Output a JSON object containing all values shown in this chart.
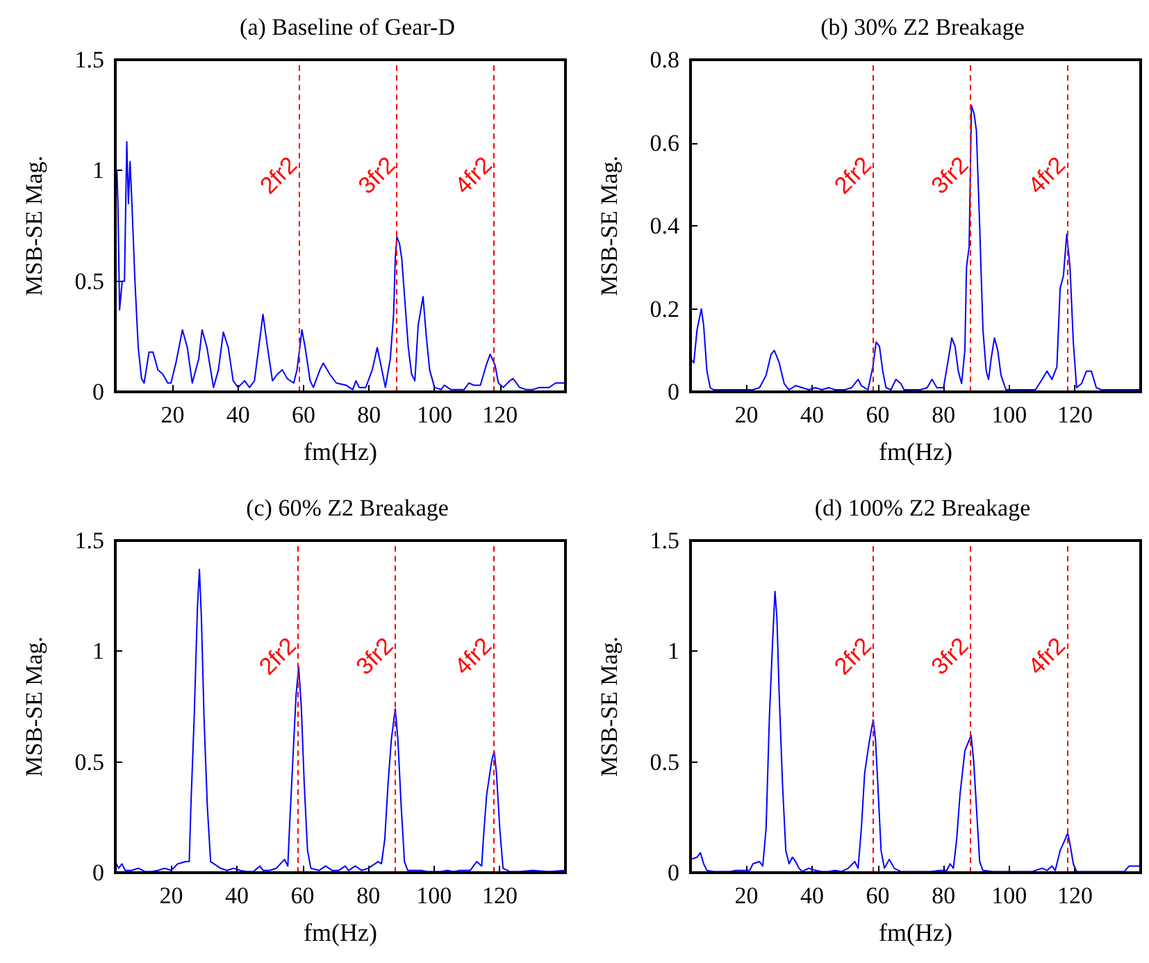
{
  "chart_data": [
    {
      "type": "line",
      "title": "(a) Baseline of Gear-D",
      "xlabel": "fm(Hz)",
      "ylabel": "MSB-SE Mag.",
      "xlim": [
        2.5,
        140
      ],
      "ylim": [
        0,
        1.5
      ],
      "xticks": [
        20,
        40,
        60,
        80,
        100,
        120
      ],
      "yticks": [
        0,
        0.5,
        1,
        1.5
      ],
      "x": [
        3,
        3.3,
        3.8,
        4.6,
        5.3,
        6,
        6.5,
        7,
        7.6,
        8.5,
        9.5,
        10.5,
        11.3,
        12.8,
        14,
        15.5,
        17,
        18.5,
        19.5,
        21,
        23,
        24.5,
        26,
        28,
        29,
        30.5,
        32.5,
        34,
        35.5,
        37,
        38.5,
        40,
        42,
        43.5,
        45,
        47,
        47.6,
        49,
        50.5,
        52,
        53.5,
        55,
        57,
        58,
        59.5,
        60.5,
        62,
        63,
        65,
        66,
        68,
        70,
        73,
        75,
        76,
        77,
        79,
        81,
        82.5,
        83.5,
        85,
        86.5,
        87.5,
        88,
        88.5,
        89.3,
        90,
        91,
        92,
        93,
        94,
        95,
        96.5,
        97.5,
        98.5,
        100,
        102,
        103,
        105,
        107,
        109,
        110.5,
        112,
        114,
        116,
        117,
        118.5,
        119.5,
        121,
        123,
        124,
        126,
        128,
        130,
        132,
        135,
        137,
        140
      ],
      "series": [
        {
          "color": "#0000ff",
          "values": [
            1.0,
            0.85,
            0.37,
            0.5,
            0.5,
            1.13,
            0.85,
            1.04,
            0.84,
            0.5,
            0.2,
            0.06,
            0.04,
            0.18,
            0.18,
            0.1,
            0.08,
            0.04,
            0.04,
            0.13,
            0.28,
            0.2,
            0.04,
            0.15,
            0.28,
            0.2,
            0.02,
            0.1,
            0.27,
            0.2,
            0.05,
            0.02,
            0.05,
            0.02,
            0.05,
            0.28,
            0.35,
            0.2,
            0.05,
            0.08,
            0.1,
            0.06,
            0.04,
            0.1,
            0.28,
            0.2,
            0.05,
            0.02,
            0.1,
            0.13,
            0.08,
            0.04,
            0.03,
            0.01,
            0.05,
            0.02,
            0.02,
            0.1,
            0.2,
            0.13,
            0.02,
            0.15,
            0.35,
            0.6,
            0.7,
            0.67,
            0.6,
            0.4,
            0.2,
            0.08,
            0.05,
            0.3,
            0.43,
            0.25,
            0.1,
            0.02,
            0.01,
            0.03,
            0.01,
            0.01,
            0.01,
            0.04,
            0.03,
            0.03,
            0.13,
            0.17,
            0.12,
            0.04,
            0.02,
            0.05,
            0.06,
            0.02,
            0.01,
            0.01,
            0.02,
            0.02,
            0.04,
            0.04
          ]
        }
      ],
      "ref_lines": [
        {
          "axis": "x",
          "value": 58.5,
          "label": "2fr2",
          "color": "#ff0000",
          "line_style": "dashed"
        },
        {
          "axis": "x",
          "value": 88.5,
          "label": "3fr2",
          "color": "#ff0000",
          "line_style": "dashed"
        },
        {
          "axis": "x",
          "value": 118,
          "label": "4fr2",
          "color": "#ff0000",
          "line_style": "dashed"
        }
      ]
    },
    {
      "type": "line",
      "title": "(b) 30% Z2 Breakage",
      "xlabel": "fm(Hz)",
      "ylabel": "MSB-SE Mag.",
      "xlim": [
        3,
        140
      ],
      "ylim": [
        0,
        0.8
      ],
      "xticks": [
        20,
        40,
        60,
        80,
        100,
        120
      ],
      "yticks": [
        0,
        0.2,
        0.4,
        0.6,
        0.8
      ],
      "x": [
        3,
        4,
        5,
        6.3,
        7,
        8,
        9,
        10,
        12,
        14,
        16,
        18,
        20,
        22,
        24,
        26,
        27.5,
        28.5,
        30,
        31.5,
        33,
        35,
        37,
        39,
        41,
        43,
        45,
        47,
        50,
        52,
        54,
        55,
        57,
        58.5,
        59.5,
        60.5,
        61.5,
        62.5,
        64,
        65.5,
        67,
        68,
        71,
        73,
        75,
        76.5,
        78,
        80,
        81.5,
        82.5,
        83.5,
        84.5,
        85.5,
        86.5,
        87,
        87.8,
        88.5,
        89.3,
        90,
        91,
        92,
        93,
        93.7,
        94.5,
        95.5,
        96.5,
        97.5,
        99,
        102,
        105,
        108,
        110,
        111.5,
        113,
        114.5,
        115.5,
        116.5,
        117.5,
        118.5,
        119.5,
        120.5,
        122,
        123.5,
        125,
        126.5,
        128,
        132,
        136,
        140
      ],
      "series": [
        {
          "color": "#0000ff",
          "values": [
            0.08,
            0.07,
            0.15,
            0.2,
            0.16,
            0.05,
            0.01,
            0.005,
            0.005,
            0.005,
            0.005,
            0.005,
            0.005,
            0.005,
            0.01,
            0.04,
            0.09,
            0.1,
            0.07,
            0.02,
            0.005,
            0.015,
            0.01,
            0.005,
            0.01,
            0.005,
            0.01,
            0.005,
            0.005,
            0.01,
            0.03,
            0.015,
            0.005,
            0.06,
            0.12,
            0.11,
            0.05,
            0.01,
            0.005,
            0.03,
            0.02,
            0.005,
            0.005,
            0.005,
            0.01,
            0.03,
            0.01,
            0.01,
            0.08,
            0.13,
            0.11,
            0.05,
            0.02,
            0.1,
            0.3,
            0.35,
            0.69,
            0.67,
            0.63,
            0.4,
            0.15,
            0.05,
            0.03,
            0.08,
            0.13,
            0.1,
            0.04,
            0.005,
            0.005,
            0.005,
            0.005,
            0.03,
            0.05,
            0.03,
            0.06,
            0.25,
            0.28,
            0.38,
            0.3,
            0.12,
            0.01,
            0.02,
            0.05,
            0.05,
            0.01,
            0.005,
            0.005,
            0.005,
            0.005
          ]
        }
      ],
      "ref_lines": [
        {
          "axis": "x",
          "value": 58.5,
          "label": "2fr2",
          "color": "#ff0000",
          "line_style": "dashed"
        },
        {
          "axis": "x",
          "value": 88,
          "label": "3fr2",
          "color": "#ff0000",
          "line_style": "dashed"
        },
        {
          "axis": "x",
          "value": 117.5,
          "label": "4fr2",
          "color": "#ff0000",
          "line_style": "dashed"
        }
      ]
    },
    {
      "type": "line",
      "title": "(c) 60% Z2 Breakage",
      "xlabel": "fm(Hz)",
      "ylabel": "MSB-SE Mag.",
      "xlim": [
        3,
        140
      ],
      "ylim": [
        0,
        1.5
      ],
      "xticks": [
        20,
        40,
        60,
        80,
        100,
        120
      ],
      "yticks": [
        0,
        0.5,
        1,
        1.5
      ],
      "x": [
        3,
        4,
        5,
        6,
        8,
        10,
        12,
        14,
        16,
        18,
        20,
        22,
        24.5,
        25.5,
        26,
        27,
        28,
        28.6,
        29.2,
        30,
        31,
        32,
        34,
        35,
        37,
        39,
        41,
        43,
        45,
        47,
        48,
        50,
        52,
        54.5,
        55.5,
        56,
        57,
        58,
        58.8,
        59.6,
        60.5,
        61.5,
        62.5,
        65,
        67,
        69,
        71,
        73,
        74,
        76,
        78,
        80,
        83,
        84,
        85,
        86,
        87,
        88.2,
        89,
        90,
        91,
        92,
        94,
        96,
        98,
        100,
        102,
        104,
        106,
        108,
        111,
        113,
        114.5,
        115,
        116,
        117.5,
        118.3,
        119,
        120,
        121,
        123,
        126,
        130,
        135,
        140
      ],
      "series": [
        {
          "color": "#0000ff",
          "values": [
            0.05,
            0.02,
            0.04,
            0.01,
            0.01,
            0.02,
            0.005,
            0.005,
            0.01,
            0.02,
            0.01,
            0.04,
            0.05,
            0.05,
            0.3,
            0.7,
            1.2,
            1.37,
            1.15,
            0.7,
            0.3,
            0.05,
            0.03,
            0.02,
            0.01,
            0.02,
            0.01,
            0.005,
            0.005,
            0.03,
            0.01,
            0.01,
            0.02,
            0.06,
            0.03,
            0.2,
            0.5,
            0.8,
            0.93,
            0.75,
            0.4,
            0.1,
            0.02,
            0.01,
            0.03,
            0.01,
            0.01,
            0.03,
            0.01,
            0.03,
            0.01,
            0.02,
            0.05,
            0.04,
            0.15,
            0.4,
            0.6,
            0.74,
            0.6,
            0.3,
            0.05,
            0.01,
            0.01,
            0.01,
            0.005,
            0.005,
            0.005,
            0.01,
            0.005,
            0.01,
            0.01,
            0.05,
            0.03,
            0.15,
            0.35,
            0.5,
            0.55,
            0.45,
            0.2,
            0.02,
            0.005,
            0.005,
            0.01,
            0.005,
            0.01
          ]
        }
      ],
      "ref_lines": [
        {
          "axis": "x",
          "value": 58.5,
          "label": "2fr2",
          "color": "#ff0000",
          "line_style": "dashed"
        },
        {
          "axis": "x",
          "value": 88,
          "label": "3fr2",
          "color": "#ff0000",
          "line_style": "dashed"
        },
        {
          "axis": "x",
          "value": 118,
          "label": "4fr2",
          "color": "#ff0000",
          "line_style": "dashed"
        }
      ]
    },
    {
      "type": "line",
      "title": "(d) 100% Z2 Breakage",
      "xlabel": "fm(Hz)",
      "ylabel": "MSB-SE Mag.",
      "xlim": [
        3,
        140
      ],
      "ylim": [
        0,
        1.5
      ],
      "xticks": [
        20,
        40,
        60,
        80,
        100,
        120
      ],
      "yticks": [
        0,
        0.5,
        1,
        1.5
      ],
      "x": [
        3,
        5,
        6,
        7,
        8,
        10,
        13,
        15,
        17,
        19,
        21,
        22,
        24,
        25,
        26,
        27,
        28,
        28.7,
        29.3,
        30,
        31,
        32,
        33,
        34,
        35,
        36,
        37,
        39,
        41,
        43,
        45,
        47,
        49,
        51,
        53,
        54,
        55,
        56,
        57.5,
        58.6,
        59.3,
        60,
        61,
        62,
        63.5,
        65,
        67,
        70,
        73,
        76,
        79,
        81,
        82,
        83,
        84,
        85,
        86.5,
        88.4,
        89.2,
        90,
        91,
        92,
        95,
        98,
        101,
        104,
        107,
        110,
        111.5,
        113,
        114,
        115.5,
        117,
        117.8,
        118.6,
        119.5,
        120.5,
        124,
        128,
        132,
        135,
        136.5,
        140
      ],
      "series": [
        {
          "color": "#0000ff",
          "values": [
            0.06,
            0.07,
            0.09,
            0.04,
            0.01,
            0.005,
            0.005,
            0.005,
            0.01,
            0.01,
            0.01,
            0.04,
            0.05,
            0.03,
            0.2,
            0.7,
            1.05,
            1.27,
            1.15,
            0.8,
            0.4,
            0.1,
            0.04,
            0.07,
            0.05,
            0.02,
            0.005,
            0.02,
            0.01,
            0.005,
            0.005,
            0.01,
            0.005,
            0.02,
            0.05,
            0.02,
            0.2,
            0.45,
            0.6,
            0.69,
            0.6,
            0.4,
            0.1,
            0.02,
            0.06,
            0.02,
            0.005,
            0.005,
            0.005,
            0.005,
            0.01,
            0.01,
            0.04,
            0.02,
            0.15,
            0.35,
            0.55,
            0.62,
            0.5,
            0.3,
            0.05,
            0.01,
            0.005,
            0.005,
            0.005,
            0.005,
            0.005,
            0.02,
            0.01,
            0.03,
            0.01,
            0.1,
            0.15,
            0.18,
            0.12,
            0.04,
            0.005,
            0.005,
            0.005,
            0.005,
            0.005,
            0.03,
            0.03
          ]
        }
      ],
      "ref_lines": [
        {
          "axis": "x",
          "value": 58.5,
          "label": "2fr2",
          "color": "#ff0000",
          "line_style": "dashed"
        },
        {
          "axis": "x",
          "value": 88,
          "label": "3fr2",
          "color": "#ff0000",
          "line_style": "dashed"
        },
        {
          "axis": "x",
          "value": 117.5,
          "label": "4fr2",
          "color": "#ff0000",
          "line_style": "dashed"
        }
      ]
    }
  ]
}
